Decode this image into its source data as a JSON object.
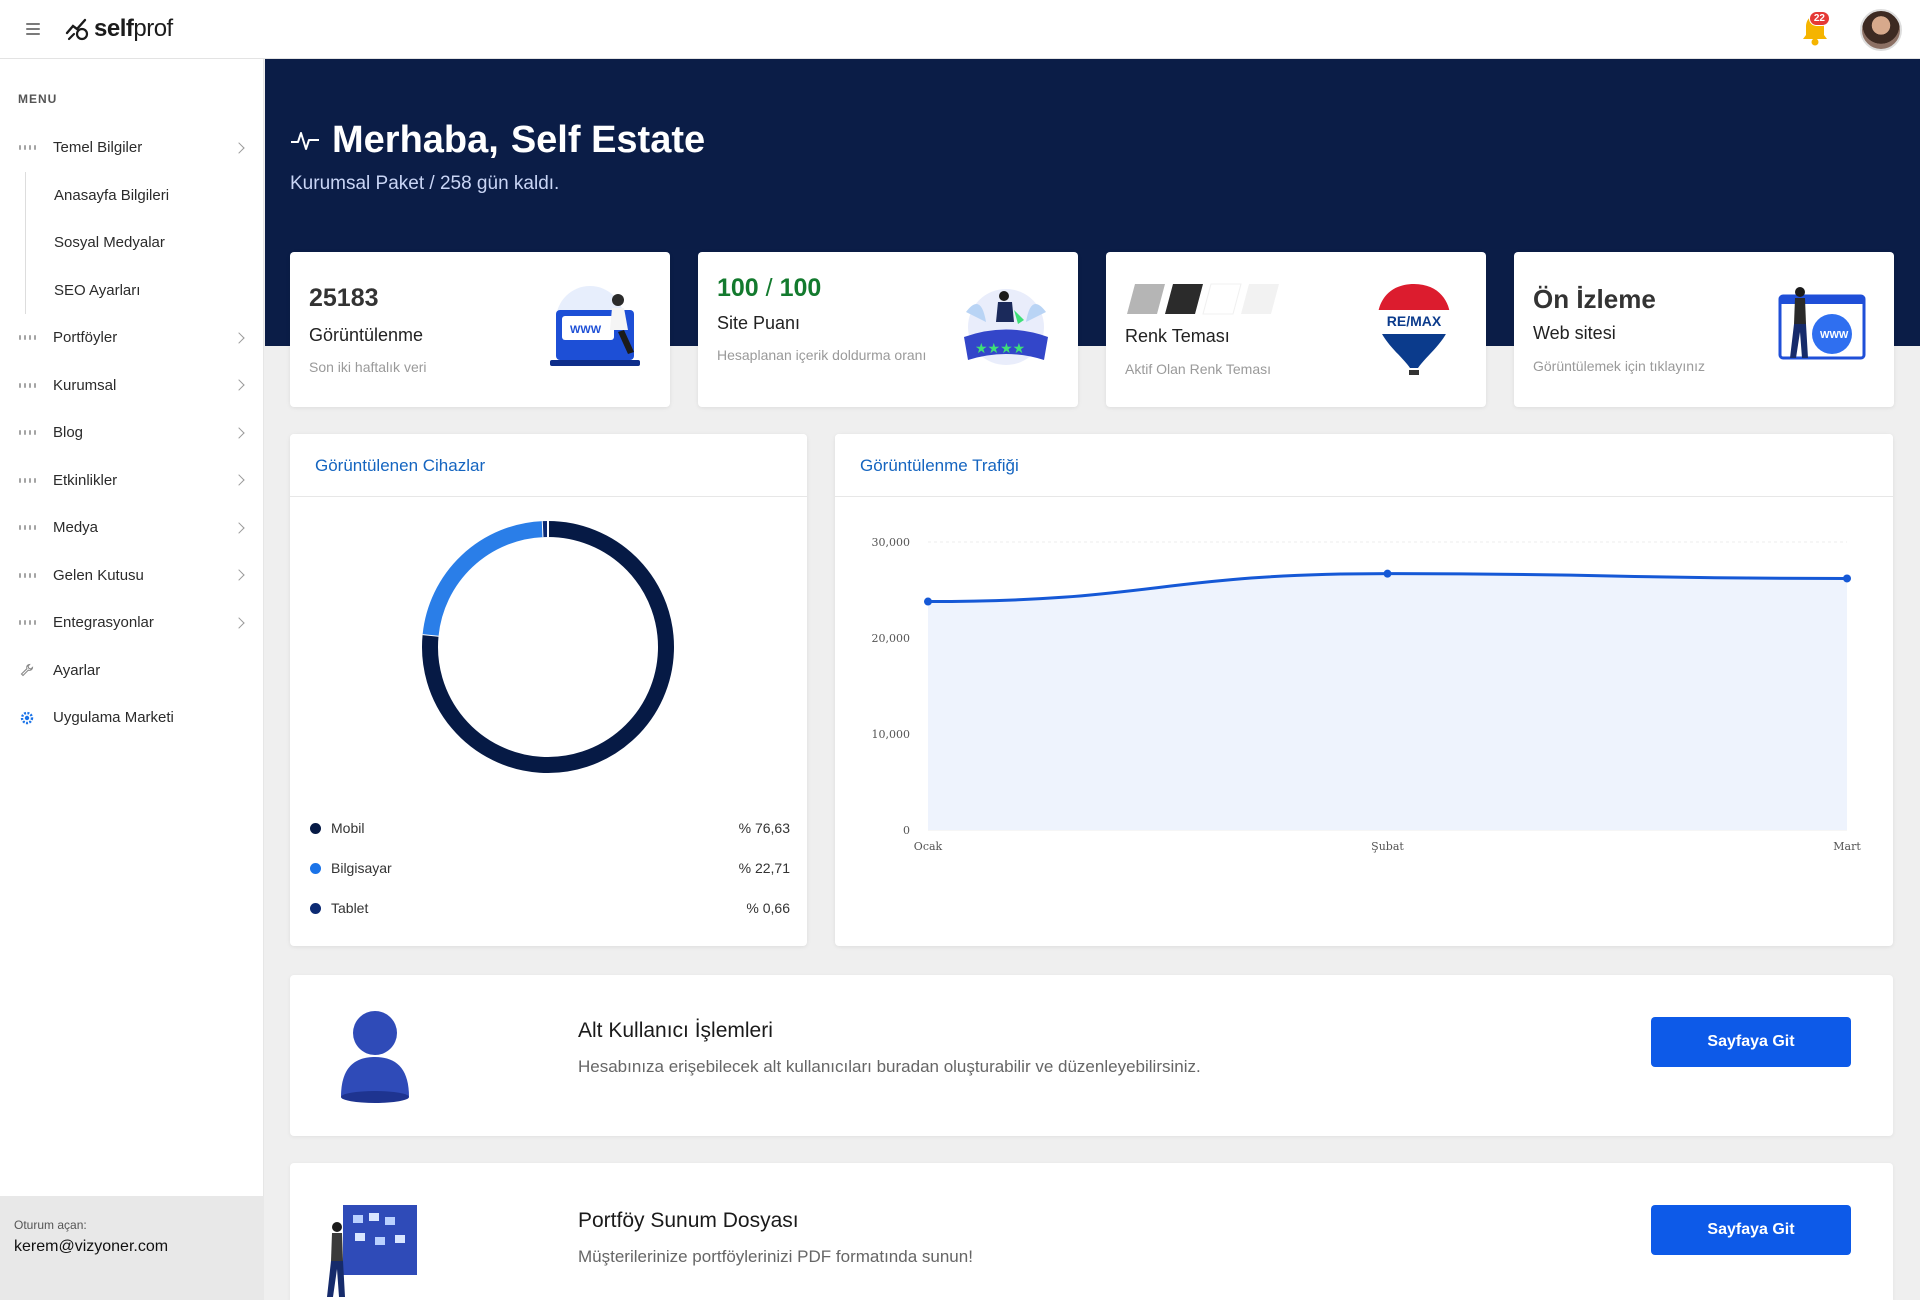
{
  "brand": {
    "name_bold": "self",
    "name_light": "prof"
  },
  "notifications": {
    "count": "22"
  },
  "sidebar": {
    "caption": "MENU",
    "items": [
      {
        "label": "Temel Bilgiler",
        "icon": "grid-icon",
        "chevron": true
      },
      {
        "label": "Anasayfa Bilgileri",
        "sub": true
      },
      {
        "label": "Sosyal Medyalar",
        "sub": true
      },
      {
        "label": "SEO Ayarları",
        "sub": true
      },
      {
        "label": "Portföyler",
        "icon": "grid-icon",
        "chevron": true
      },
      {
        "label": "Kurumsal",
        "icon": "grid-icon",
        "chevron": true
      },
      {
        "label": "Blog",
        "icon": "grid-icon",
        "chevron": true
      },
      {
        "label": "Etkinlikler",
        "icon": "grid-icon",
        "chevron": true
      },
      {
        "label": "Medya",
        "icon": "grid-icon",
        "chevron": true
      },
      {
        "label": "Gelen Kutusu",
        "icon": "grid-icon",
        "chevron": true
      },
      {
        "label": "Entegrasyonlar",
        "icon": "grid-icon",
        "chevron": true
      },
      {
        "label": "Ayarlar",
        "icon": "wrench-icon",
        "chevron": false
      },
      {
        "label": "Uygulama Marketi",
        "icon": "gear-icon",
        "chevron": false
      }
    ],
    "footer": {
      "label": "Oturum açan:",
      "email": "kerem@vizyoner.com"
    }
  },
  "hero": {
    "greeting": "Merhaba,",
    "name": "Self Estate",
    "subtitle": "Kurumsal Paket / 258 gün kaldı."
  },
  "cards": [
    {
      "value": "25183",
      "title": "Görüntülenme",
      "note": "Son iki haftalık veri"
    },
    {
      "value_main": "100",
      "value_sep": "/",
      "value_total": "100",
      "title": "Site Puanı",
      "note": "Hesaplanan içerik doldurma oranı"
    },
    {
      "title": "Renk Teması",
      "note": "Aktif Olan Renk Teması",
      "swatches": [
        "#b5b5b5",
        "#2b2b2b",
        "#ffffff",
        "#f2f2f2"
      ]
    },
    {
      "value": "Ön İzleme",
      "title": "Web sitesi",
      "note": "Görüntülemek için tıklayınız"
    }
  ],
  "devices": {
    "title": "Görüntülenen Cihazlar",
    "legend": [
      {
        "label": "Mobil",
        "pct": "% 76,63",
        "color": "#061a45"
      },
      {
        "label": "Bilgisayar",
        "pct": "% 22,71",
        "color": "#1a73e8"
      },
      {
        "label": "Tablet",
        "pct": "% 0,66",
        "color": "#0c2a73"
      }
    ]
  },
  "traffic": {
    "title": "Görüntülenme Trafiği"
  },
  "chart_data": [
    {
      "type": "pie",
      "title": "Görüntülenen Cihazlar",
      "categories": [
        "Mobil",
        "Bilgisayar",
        "Tablet"
      ],
      "values": [
        76.63,
        22.71,
        0.66
      ],
      "colors": [
        "#061a45",
        "#2a7ee8",
        "#0c2a73"
      ]
    },
    {
      "type": "area",
      "title": "Görüntülenme Trafiği",
      "categories": [
        "Ocak",
        "Şubat",
        "Mart"
      ],
      "series": [
        {
          "values": [
            23800,
            26700,
            26200
          ]
        }
      ],
      "ylim": [
        0,
        30000
      ],
      "yticks": [
        "0",
        "10,000",
        "20,000",
        "30,000"
      ],
      "color": "#1558d6",
      "grid": true
    }
  ],
  "actions": [
    {
      "title": "Alt Kullanıcı İşlemleri",
      "desc": "Hesabınıza erişebilecek alt kullanıcıları buradan oluşturabilir ve düzenleyebilirsiniz.",
      "button": "Sayfaya Git"
    },
    {
      "title": "Portföy Sunum Dosyası",
      "desc": "Müşterilerinize portföylerinizi PDF formatında sunun!",
      "button": "Sayfaya Git"
    }
  ]
}
